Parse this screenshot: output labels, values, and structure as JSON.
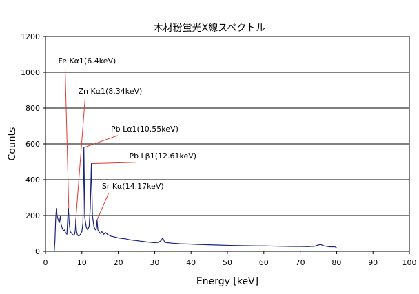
{
  "chart_data": {
    "type": "line",
    "title": "木材粉蛍光X線スペクトル",
    "xlabel": "Energy [keV]",
    "ylabel": "Counts",
    "xlim": [
      0,
      100
    ],
    "ylim": [
      0,
      1200
    ],
    "x_ticks": [
      0,
      10,
      20,
      30,
      40,
      50,
      60,
      70,
      80,
      90,
      100
    ],
    "y_ticks": [
      0,
      200,
      400,
      600,
      800,
      1000,
      1200
    ],
    "grid": "horizontal",
    "line_color": "#1a237e",
    "annotation_color": "#e53935",
    "series": [
      {
        "points": [
          [
            2.4,
            0
          ],
          [
            2.6,
            60
          ],
          [
            2.8,
            180
          ],
          [
            3.0,
            240
          ],
          [
            3.2,
            200
          ],
          [
            3.5,
            175
          ],
          [
            3.8,
            160
          ],
          [
            4.1,
            195
          ],
          [
            4.3,
            150
          ],
          [
            4.6,
            130
          ],
          [
            4.9,
            115
          ],
          [
            5.2,
            120
          ],
          [
            5.5,
            105
          ],
          [
            5.9,
            95
          ],
          [
            6.1,
            180
          ],
          [
            6.3,
            240
          ],
          [
            6.5,
            160
          ],
          [
            6.8,
            110
          ],
          [
            7.2,
            100
          ],
          [
            7.6,
            90
          ],
          [
            8.0,
            95
          ],
          [
            8.2,
            120
          ],
          [
            8.34,
            180
          ],
          [
            8.5,
            115
          ],
          [
            8.8,
            90
          ],
          [
            9.2,
            85
          ],
          [
            9.6,
            95
          ],
          [
            10.0,
            110
          ],
          [
            10.3,
            160
          ],
          [
            10.55,
            580
          ],
          [
            10.8,
            190
          ],
          [
            11.2,
            135
          ],
          [
            11.6,
            120
          ],
          [
            12.0,
            140
          ],
          [
            12.3,
            240
          ],
          [
            12.61,
            490
          ],
          [
            12.9,
            200
          ],
          [
            13.3,
            140
          ],
          [
            13.7,
            120
          ],
          [
            14.0,
            130
          ],
          [
            14.17,
            175
          ],
          [
            14.4,
            120
          ],
          [
            15.0,
            100
          ],
          [
            15.5,
            110
          ],
          [
            16.0,
            95
          ],
          [
            16.5,
            105
          ],
          [
            17.0,
            95
          ],
          [
            18.0,
            85
          ],
          [
            19.0,
            80
          ],
          [
            20.0,
            75
          ],
          [
            21.0,
            72
          ],
          [
            22.0,
            70
          ],
          [
            23.0,
            65
          ],
          [
            24.0,
            62
          ],
          [
            25.0,
            60
          ],
          [
            26.0,
            57
          ],
          [
            27.0,
            55
          ],
          [
            28.0,
            52
          ],
          [
            29.0,
            50
          ],
          [
            30.0,
            48
          ],
          [
            31.0,
            50
          ],
          [
            31.8,
            60
          ],
          [
            32.2,
            75
          ],
          [
            32.8,
            50
          ],
          [
            33.5,
            48
          ],
          [
            35.0,
            45
          ],
          [
            37.0,
            42
          ],
          [
            40.0,
            40
          ],
          [
            42.0,
            38
          ],
          [
            45.0,
            36
          ],
          [
            48.0,
            34
          ],
          [
            50.0,
            33
          ],
          [
            52.0,
            32
          ],
          [
            55.0,
            31
          ],
          [
            58.0,
            30
          ],
          [
            60.0,
            30
          ],
          [
            62.0,
            29
          ],
          [
            65.0,
            28
          ],
          [
            68.0,
            27
          ],
          [
            70.0,
            27
          ],
          [
            72.0,
            26
          ],
          [
            74.0,
            28
          ],
          [
            75.5,
            38
          ],
          [
            76.5,
            30
          ],
          [
            78.0,
            25
          ],
          [
            79.5,
            25
          ],
          [
            80.0,
            20
          ]
        ]
      }
    ],
    "annotations": [
      {
        "text": "Fe Kα1(6.4keV)",
        "x": 6.4,
        "y": 240,
        "label_x": 3.5,
        "label_y": 1050
      },
      {
        "text": "Zn Kα1(8.34keV)",
        "x": 8.34,
        "y": 180,
        "label_x": 9.0,
        "label_y": 880
      },
      {
        "text": "Pb Lα1(10.55keV)",
        "x": 10.55,
        "y": 580,
        "label_x": 18.0,
        "label_y": 670
      },
      {
        "text": "Pb Lβ1(12.61keV)",
        "x": 12.61,
        "y": 490,
        "label_x": 23.0,
        "label_y": 520
      },
      {
        "text": "Sr Kα(14.17keV)",
        "x": 14.17,
        "y": 175,
        "label_x": 15.5,
        "label_y": 350
      }
    ]
  }
}
